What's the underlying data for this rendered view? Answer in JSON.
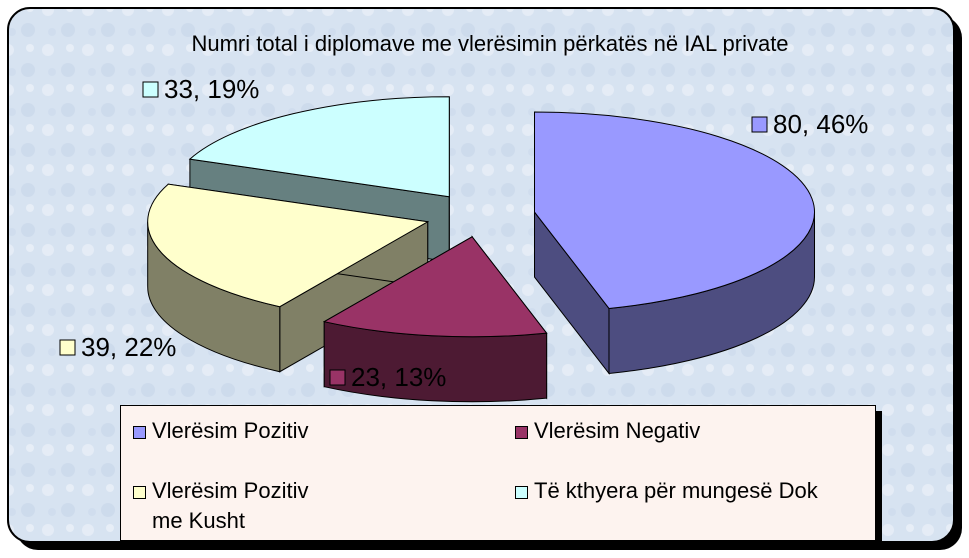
{
  "chart_data": {
    "type": "pie",
    "title": "Numri total i diplomave me vlerësimin përkatës në IAL private",
    "categories": [
      "Vlerësim Pozitiv",
      "Vlerësim Negativ",
      "Vlerësim Pozitiv me Kusht",
      "Të kthyera për mungesë Dok"
    ],
    "values": [
      80,
      23,
      39,
      33
    ],
    "value_labels": [
      "80, 46%",
      "23, 13%",
      "39, 22%",
      "33, 19%"
    ],
    "colors": [
      "#9999ff",
      "#993366",
      "#ffffcc",
      "#ccffff"
    ],
    "legend": "bottom"
  }
}
